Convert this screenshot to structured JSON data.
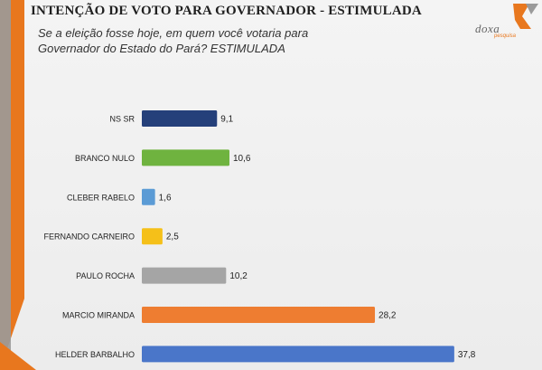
{
  "header": {
    "title": "INTENÇÃO DE VOTO PARA GOVERNADOR - ESTIMULADA",
    "subtitle": "Se a eleição fosse hoje, em quem você votaria para Governador do Estado do Pará? ESTIMULADA"
  },
  "logo": {
    "name": "doxa",
    "tagline": "pesquisa"
  },
  "colors": {
    "accent_orange": "#e8771e",
    "accent_gray": "#9a9a9a",
    "text": "#222222"
  },
  "chart_data": {
    "type": "bar",
    "orientation": "horizontal",
    "title": "",
    "xlabel": "",
    "ylabel": "",
    "xlim": [
      0,
      40
    ],
    "grid": false,
    "categories": [
      "NS SR",
      "BRANCO NULO",
      "CLEBER RABELO",
      "FERNANDO CARNEIRO",
      "PAULO ROCHA",
      "MARCIO MIRANDA",
      "HELDER BARBALHO"
    ],
    "values": [
      9.1,
      10.6,
      1.6,
      2.5,
      10.2,
      28.2,
      37.8
    ],
    "value_labels": [
      "9,1",
      "10,6",
      "1,6",
      "2,5",
      "10,2",
      "28,2",
      "37,8"
    ],
    "bar_colors": [
      "#25407a",
      "#6fb33f",
      "#5b9bd5",
      "#f5c019",
      "#a5a5a5",
      "#ee7d31",
      "#4a76c9"
    ]
  }
}
